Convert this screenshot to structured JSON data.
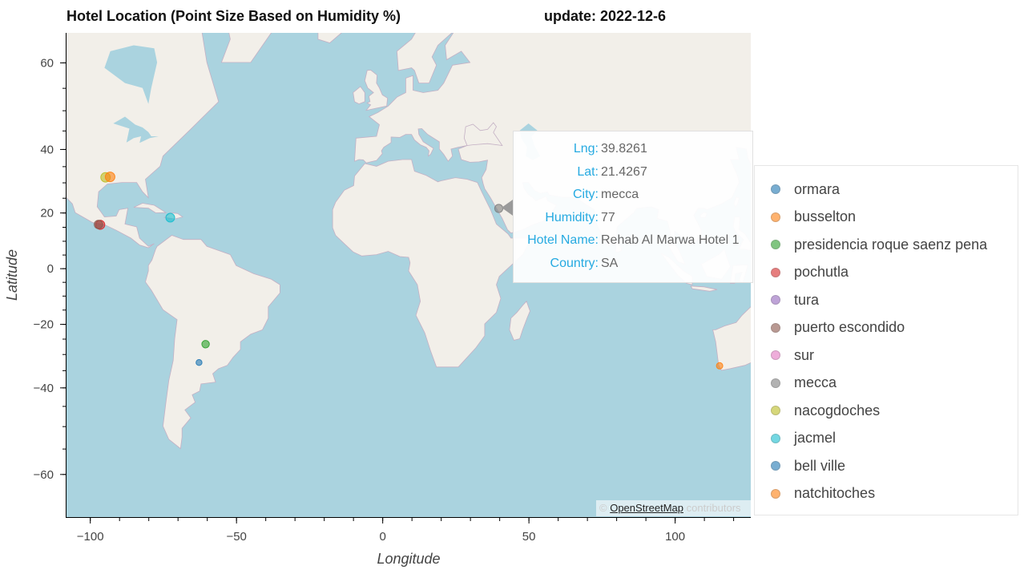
{
  "header": {
    "title": "Hotel Location (Point Size Based on Humidity %)",
    "update": "update: 2022-12-6"
  },
  "colors": {
    "ocean": "#aad3df",
    "land": "#f2efe9",
    "border": "#c4b0c4",
    "tooltip_key": "#26aae1"
  },
  "chart_data": {
    "type": "scatter",
    "xlabel": "Longitude",
    "ylabel": "Latitude",
    "xlim": [
      -108,
      126
    ],
    "ylim": [
      -67,
      65
    ],
    "y_scale": "web-mercator",
    "x_ticks": [
      -100,
      -50,
      0,
      50,
      100
    ],
    "x_tick_labels": [
      "−100",
      "−50",
      "0",
      "50",
      "100"
    ],
    "y_ticks": [
      60,
      40,
      20,
      0,
      -20,
      -40,
      -60
    ],
    "y_tick_labels": [
      "60",
      "40",
      "20",
      "0",
      "−20",
      "−40",
      "−60"
    ],
    "grid": false,
    "legend_position": "right",
    "series": [
      {
        "name": "ormara",
        "color": "#1f77b4",
        "points": []
      },
      {
        "name": "busselton",
        "color": "#ff7f0e",
        "points": [
          {
            "x": 115.33,
            "y": -33.65,
            "humidity": 60
          }
        ]
      },
      {
        "name": "presidencia roque saenz pena",
        "color": "#2ca02c",
        "points": [
          {
            "x": -60.44,
            "y": -26.79,
            "humidity": 70
          }
        ]
      },
      {
        "name": "pochutla",
        "color": "#d62728",
        "points": [
          {
            "x": -96.47,
            "y": 15.74,
            "humidity": 85
          }
        ]
      },
      {
        "name": "tura",
        "color": "#9467bd",
        "points": []
      },
      {
        "name": "puerto escondido",
        "color": "#8c564b",
        "points": [
          {
            "x": -97.07,
            "y": 15.85,
            "humidity": 80
          }
        ]
      },
      {
        "name": "sur",
        "color": "#e377c2",
        "points": []
      },
      {
        "name": "mecca",
        "color": "#7f7f7f",
        "points": [
          {
            "x": 39.8261,
            "y": 21.4267,
            "humidity": 77
          }
        ]
      },
      {
        "name": "nacogdoches",
        "color": "#bcbd22",
        "points": [
          {
            "x": -94.66,
            "y": 31.6,
            "humidity": 88
          }
        ]
      },
      {
        "name": "jacmel",
        "color": "#17becf",
        "points": [
          {
            "x": -72.53,
            "y": 18.23,
            "humidity": 82
          }
        ]
      },
      {
        "name": "bell ville",
        "color": "#1f77b4",
        "points": [
          {
            "x": -62.69,
            "y": -32.63,
            "humidity": 55
          }
        ]
      },
      {
        "name": "natchitoches",
        "color": "#ff7f0e",
        "points": [
          {
            "x": -93.09,
            "y": 31.76,
            "humidity": 90
          }
        ]
      }
    ]
  },
  "tooltip": {
    "rows": [
      {
        "key": "Lng:",
        "value": "39.8261"
      },
      {
        "key": "Lat:",
        "value": "21.4267"
      },
      {
        "key": "City:",
        "value": "mecca"
      },
      {
        "key": "Humidity:",
        "value": "77"
      },
      {
        "key": "Hotel Name:",
        "value": "Rehab Al Marwa Hotel 1"
      },
      {
        "key": "Country:",
        "value": "SA"
      }
    ]
  },
  "attribution": {
    "prefix": "©",
    "link": "OpenStreetMap",
    "suffix": "contributors"
  }
}
